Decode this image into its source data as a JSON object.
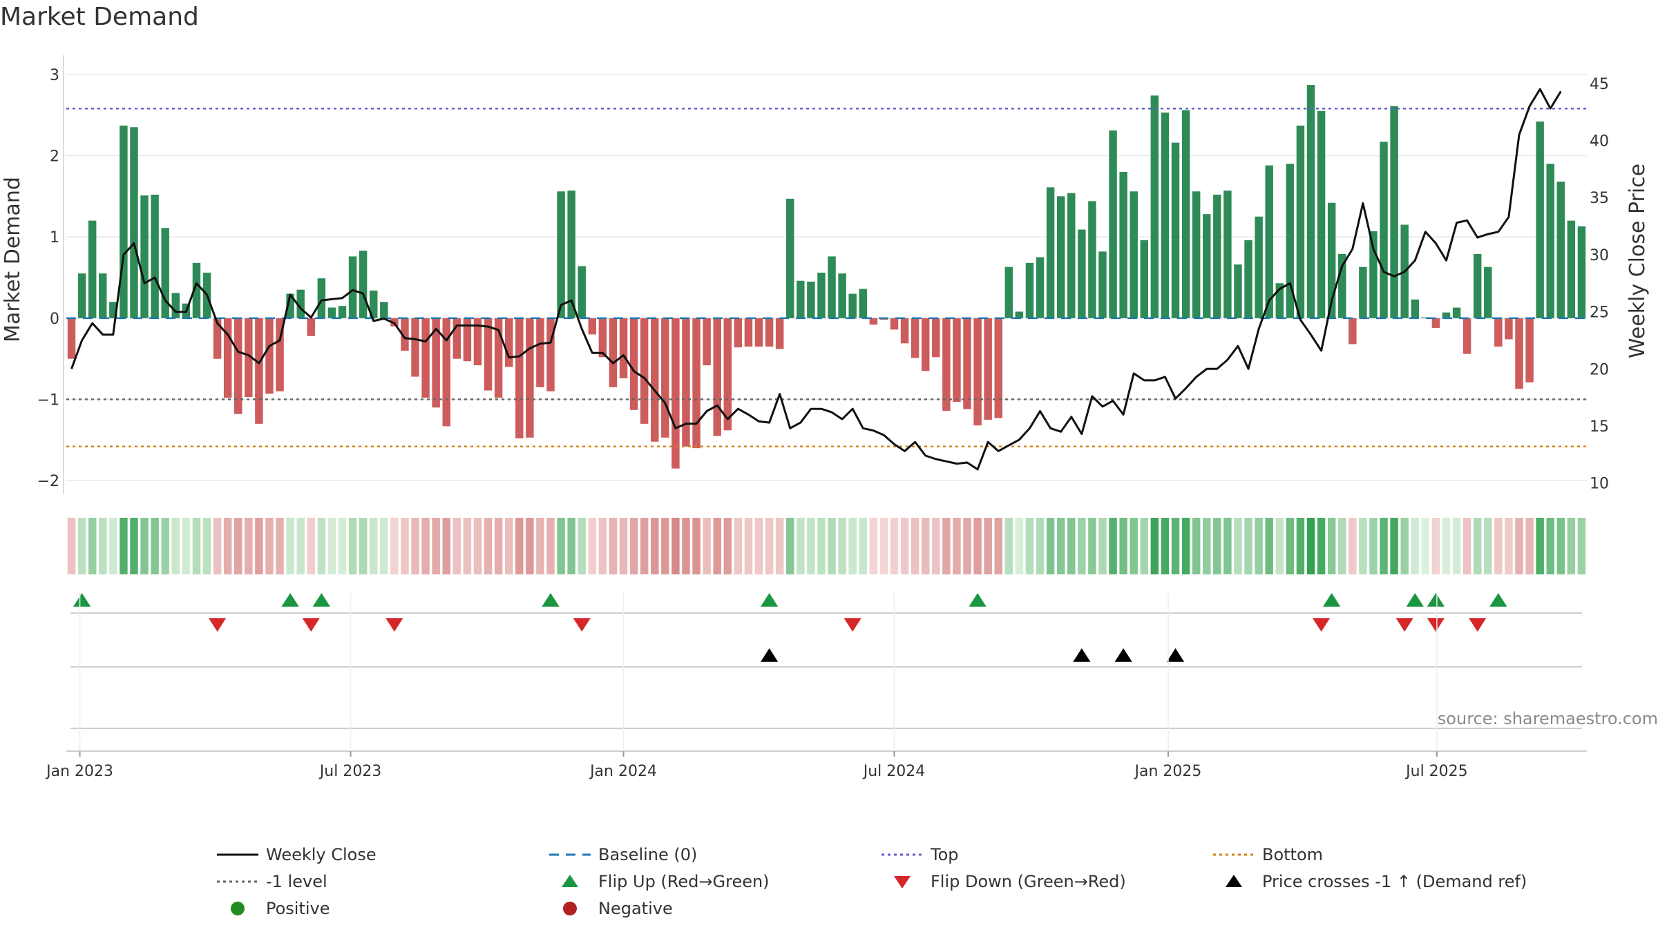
{
  "title": "Market Demand",
  "colors": {
    "positive": "#2e8b57",
    "negative": "#cd5c5c",
    "price": "#111111",
    "baseline": "#1f77b4",
    "top": "#6a5acd",
    "minus1": "#666666",
    "bottom": "#d4820f",
    "flip_up": "#1a9641",
    "flip_down": "#d62728",
    "cross": "#000000",
    "grid": "#e8e8e8"
  },
  "chart_data": {
    "type": "bar",
    "title": "Market Demand",
    "ylabel": "Market Demand",
    "y2label": "Weekly Close Price",
    "ylim": [
      -2.1,
      3.1
    ],
    "y2lim": [
      9.5,
      46.5
    ],
    "yticks": [
      -2,
      -1,
      0,
      1,
      2,
      3
    ],
    "y2ticks": [
      10,
      15,
      20,
      25,
      30,
      35,
      40,
      45
    ],
    "x_tick_labels": [
      "Jan 2023",
      "Jul 2023",
      "Jan 2024",
      "Jul 2024",
      "Jan 2025",
      "Jul 2025"
    ],
    "x_tick_index": [
      0.8,
      26.8,
      53,
      79,
      105.3,
      131.1
    ],
    "reference_lines": {
      "top": 2.58,
      "minus1": -1.0,
      "bottom": -1.58,
      "baseline": 0
    },
    "demand": [
      -0.5,
      0.55,
      1.2,
      0.55,
      0.2,
      2.37,
      2.35,
      1.51,
      1.52,
      1.11,
      0.31,
      0.18,
      0.68,
      0.56,
      -0.5,
      -0.98,
      -1.18,
      -0.97,
      -1.3,
      -0.93,
      -0.9,
      0.3,
      0.35,
      -0.22,
      0.49,
      0.13,
      0.15,
      0.76,
      0.83,
      0.34,
      0.2,
      -0.1,
      -0.4,
      -0.72,
      -0.98,
      -1.1,
      -1.33,
      -0.5,
      -0.53,
      -0.58,
      -0.89,
      -0.98,
      -0.6,
      -1.48,
      -1.47,
      -0.85,
      -0.9,
      1.56,
      1.57,
      0.64,
      -0.2,
      -0.48,
      -0.85,
      -0.74,
      -1.13,
      -1.3,
      -1.52,
      -1.47,
      -1.85,
      -1.58,
      -1.6,
      -0.58,
      -1.45,
      -1.38,
      -0.36,
      -0.35,
      -0.35,
      -0.35,
      -0.38,
      1.47,
      0.46,
      0.45,
      0.56,
      0.76,
      0.55,
      0.3,
      0.36,
      -0.08,
      -0.02,
      -0.14,
      -0.31,
      -0.49,
      -0.65,
      -0.48,
      -1.14,
      -1.03,
      -1.12,
      -1.32,
      -1.25,
      -1.23,
      0.63,
      0.08,
      0.68,
      0.75,
      1.61,
      1.5,
      1.54,
      1.09,
      1.44,
      0.82,
      2.31,
      1.8,
      1.56,
      0.96,
      2.74,
      2.53,
      2.16,
      2.56,
      1.56,
      1.28,
      1.52,
      1.57,
      0.66,
      0.96,
      1.25,
      1.88,
      0.43,
      1.9,
      2.37,
      2.87,
      2.55,
      1.42,
      0.79,
      -0.32,
      0.63,
      1.07,
      2.17,
      2.61,
      1.15,
      0.23,
      0.01,
      -0.12,
      0.07,
      0.13,
      -0.44,
      0.79,
      0.63,
      -0.35,
      -0.26,
      -0.87,
      -0.79,
      2.42,
      1.9,
      1.68,
      1.2,
      1.13
    ],
    "weekly_close": [
      20,
      22.5,
      24,
      23,
      23,
      30,
      31,
      27.5,
      28,
      26,
      25,
      25,
      27.5,
      26.5,
      24,
      23,
      21.5,
      21.2,
      20.5,
      22,
      22.5,
      26.5,
      25.3,
      24.5,
      26,
      26.1,
      26.2,
      26.9,
      26.6,
      24.2,
      24.4,
      24,
      22.7,
      22.6,
      22.4,
      23.5,
      22.5,
      23.8,
      23.8,
      23.8,
      23.7,
      23.4,
      21,
      21.1,
      21.8,
      22.2,
      22.3,
      25.6,
      26,
      23.5,
      21.4,
      21.4,
      20.5,
      21.2,
      19.8,
      19.2,
      18.1,
      17,
      14.8,
      15.2,
      15.2,
      16.3,
      16.8,
      15.6,
      16.5,
      16,
      15.4,
      15.3,
      17.8,
      14.8,
      15.3,
      16.5,
      16.5,
      16.2,
      15.6,
      16.5,
      14.8,
      14.6,
      14.2,
      13.4,
      12.8,
      13.6,
      12.4,
      12.1,
      11.9,
      11.7,
      11.8,
      11.2,
      13.6,
      12.8,
      13.3,
      13.8,
      14.8,
      16.3,
      14.8,
      14.5,
      15.8,
      14.3,
      17.6,
      16.7,
      17.2,
      16,
      19.6,
      19.0,
      19.0,
      19.3,
      17.4,
      18.3,
      19.3,
      20,
      20,
      20.8,
      22,
      20.0,
      23.5,
      26,
      27,
      27.5,
      24.3,
      23,
      21.6,
      26,
      29,
      30.5,
      34.5,
      30.5,
      28.5,
      28.1,
      28.5,
      29.5,
      32,
      31,
      29.5,
      32.8,
      33,
      31.5,
      31.8,
      32,
      33.3,
      40.5,
      43,
      44.5,
      42.8,
      44.3
    ],
    "flip_up_index": [
      1,
      21,
      24,
      46,
      67,
      87,
      121,
      129,
      131,
      137
    ],
    "flip_down_index": [
      14,
      23,
      31,
      49,
      75,
      120,
      128,
      131,
      135
    ],
    "price_cross_index": [
      67,
      97,
      101,
      106
    ]
  },
  "legend": [
    {
      "label": "Weekly Close",
      "kind": "line",
      "color": "#111111",
      "dash": "solid"
    },
    {
      "label": "Baseline (0)",
      "kind": "line",
      "color": "#1f77b4",
      "dash": "long"
    },
    {
      "label": "Top",
      "kind": "line",
      "color": "#6a5acd",
      "dash": "dot"
    },
    {
      "label": "Bottom",
      "kind": "line",
      "color": "#d4820f",
      "dash": "dot"
    },
    {
      "label": "-1 level",
      "kind": "line",
      "color": "#666666",
      "dash": "dot"
    },
    {
      "label": "Flip Up (Red→Green)",
      "kind": "tri-up",
      "color": "#1a9641"
    },
    {
      "label": "Flip Down (Green→Red)",
      "kind": "tri-down",
      "color": "#d62728"
    },
    {
      "label": "Price crosses -1 ↑ (Demand ref)",
      "kind": "tri-up",
      "color": "#000000"
    },
    {
      "label": "Positive",
      "kind": "dot",
      "color": "#228b22"
    },
    {
      "label": "Negative",
      "kind": "dot",
      "color": "#b22222"
    }
  ],
  "source": "source: sharemaestro.com"
}
